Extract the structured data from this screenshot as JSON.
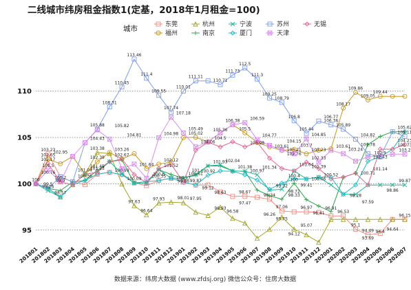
{
  "chart_data": {
    "type": "line",
    "title": "二线城市纬房租金指数1(定基，2018年1月租金=100)",
    "legend_title": "城市",
    "source": "数据来源：纬房大数据 (www.zfdsj.org)     微信公众号：住房大数据",
    "ylim": [
      93.5,
      114.5
    ],
    "yticks": [
      95,
      100,
      105,
      110
    ],
    "grid": "horizontal-dotted",
    "legend_position": "top",
    "x": [
      "201801",
      "201802",
      "201803",
      "201804",
      "201805",
      "201806",
      "201807",
      "201808",
      "201809",
      "201810",
      "201811",
      "201812",
      "201901",
      "201902",
      "201903",
      "201904",
      "201905",
      "201906",
      "201907",
      "201908",
      "201909",
      "201910",
      "201911",
      "201912",
      "202001",
      "202002",
      "202003",
      "202004",
      "202005",
      "202006",
      "202007"
    ],
    "series": [
      {
        "name": "东莞",
        "color": "#f08a80",
        "marker": "square",
        "values": [
          100,
          103.23,
          100.76,
          100.2,
          99.9,
          101.04,
          101.23,
          100.99,
          100.09,
          99.8,
          100.35,
          100.6,
          100.17,
          99.86,
          99.87,
          99.12,
          98.63,
          98.67,
          98.54,
          98.34,
          97.06,
          96.97,
          96.97,
          96.91,
          96.53,
          96.53,
          95.1,
          94.49,
          94.64,
          96.15,
          96.15
        ]
      },
      {
        "name": "福州",
        "color": "#c8961e",
        "marker": "circle",
        "values": [
          100,
          102.65,
          102.17,
          102.95,
          101.04,
          102.39,
          103.38,
          102.67,
          103.26,
          101.64,
          102.12,
          102.34,
          104.98,
          105.02,
          104.54,
          105.49,
          106.38,
          105.5,
          104.47,
          103.98,
          103.61,
          103.7,
          103.23,
          103.61,
          103.78,
          108.17,
          109.86,
          109.05,
          109.44,
          109.44,
          109.44
        ]
      },
      {
        "name": "杭州",
        "color": "#a3a32c",
        "marker": "triangle",
        "values": [
          100,
          99.5,
          98.57,
          99.9,
          101.04,
          103.38,
          103.26,
          99.97,
          97.63,
          96.64,
          97.93,
          98.01,
          97.95,
          96.93,
          96.58,
          97.47,
          96.26,
          95.75,
          94.12,
          95.07,
          96.41,
          95.1,
          94.49,
          93.69,
          96.15,
          96.15,
          96.15,
          96.15,
          96.15,
          96.15,
          96.15
        ]
      },
      {
        "name": "南京",
        "color": "#2aa34a",
        "marker": "plus",
        "values": [
          100,
          99.5,
          99.26,
          100.2,
          100.36,
          101.45,
          102.39,
          102.57,
          100.09,
          100.22,
          101.52,
          101.0,
          100.61,
          100.92,
          101.93,
          101.92,
          101.38,
          101.34,
          99.32,
          98.72,
          98.33,
          100.06,
          98.28,
          97.59,
          97.0,
          100.71,
          101.14,
          104.23,
          105.11,
          105.62,
          105.62
        ]
      },
      {
        "name": "宁波",
        "color": "#1ab89a",
        "marker": "cross",
        "values": [
          100,
          99.26,
          98.57,
          99.9,
          101.04,
          101.23,
          102.39,
          101.09,
          100.09,
          100.03,
          101.52,
          100.6,
          100.61,
          101.0,
          101.93,
          102.04,
          101.38,
          101.34,
          100.97,
          99.32,
          99.41,
          101.39,
          100.52,
          100.71,
          99.87,
          98.86,
          98.86,
          99.87,
          99.87,
          99.87,
          99.87
        ]
      },
      {
        "name": "厦门",
        "color": "#20b8c8",
        "marker": "diamond",
        "values": [
          100,
          99.5,
          98.57,
          99.9,
          100.36,
          101.04,
          101.23,
          100.99,
          100.09,
          100.22,
          100.35,
          100.6,
          100.17,
          99.86,
          100.92,
          101.38,
          101.34,
          100.97,
          100.4,
          99.41,
          100.06,
          100.52,
          100.52,
          100.71,
          100.71,
          98.86,
          99.87,
          102.43,
          102.9,
          103.73,
          105.62
        ]
      },
      {
        "name": "苏州",
        "color": "#7b9cf0",
        "marker": "square",
        "values": [
          100,
          99.5,
          100.76,
          100.2,
          104.43,
          105.88,
          108.31,
          110.45,
          113.46,
          111.4,
          109.55,
          107.74,
          110.01,
          111.11,
          111.11,
          110.71,
          111.73,
          112.5,
          111.3,
          109.25,
          108.79,
          106.8,
          105.44,
          106.77,
          106.36,
          105.89,
          104.82,
          103.24,
          102.9,
          105.62,
          105.11
        ]
      },
      {
        "name": "天津",
        "color": "#d98ef0",
        "marker": "square-x",
        "values": [
          100,
          101.5,
          100.2,
          102.95,
          104.43,
          105.82,
          104.81,
          101.64,
          102.12,
          100.6,
          104.98,
          107.18,
          105.49,
          103.98,
          104.5,
          105.49,
          106.38,
          106.59,
          104.77,
          104.15,
          103.67,
          103.23,
          104.85,
          102.33,
          103.61,
          103.24,
          102.43,
          102.9,
          103.0,
          103.2,
          103.2
        ]
      },
      {
        "name": "无锡",
        "color": "#e8608c",
        "marker": "diamond",
        "values": [
          100,
          102.17,
          100.2,
          99.9,
          101.04,
          101.23,
          102.39,
          102.67,
          100.99,
          100.09,
          101.64,
          102.12,
          100.17,
          103.61,
          104.5,
          103.98,
          104.54,
          103.98,
          104.47,
          102.76,
          101.64,
          101.39,
          102.33,
          101.64,
          100.52,
          100.71,
          101.14,
          99.87,
          103.73,
          103.73,
          104.23
        ]
      }
    ],
    "label_text": [
      {
        "t": "113.46",
        "x": 8,
        "y": 113.46
      },
      {
        "t": "111.4",
        "x": 9,
        "y": 111.4
      },
      {
        "t": "110.45",
        "x": 7,
        "y": 110.45
      },
      {
        "t": "109.55",
        "x": 10,
        "y": 109.55
      },
      {
        "t": "108.31",
        "x": 6,
        "y": 108.31
      },
      {
        "t": "107.74",
        "x": 11,
        "y": 107.74
      },
      {
        "t": "105.88",
        "x": 5,
        "y": 105.88
      },
      {
        "t": "105.82",
        "x": 7,
        "y": 105.82
      },
      {
        "t": "104.81",
        "x": 8,
        "y": 104.81
      },
      {
        "t": "104.43",
        "x": 5,
        "y": 104.43
      },
      {
        "t": "111.11",
        "x": 13,
        "y": 111.11
      },
      {
        "t": "110.01",
        "x": 12,
        "y": 110.01
      },
      {
        "t": "110.71",
        "x": 15,
        "y": 110.71
      },
      {
        "t": "111.73",
        "x": 16,
        "y": 111.73
      },
      {
        "t": "112.5",
        "x": 17,
        "y": 112.5
      },
      {
        "t": "111.3",
        "x": 18,
        "y": 111.3
      },
      {
        "t": "109.25",
        "x": 19,
        "y": 109.25
      },
      {
        "t": "108.79",
        "x": 20,
        "y": 108.79
      },
      {
        "t": "106.8",
        "x": 21,
        "y": 106.8
      },
      {
        "t": "105.44",
        "x": 22,
        "y": 105.44
      },
      {
        "t": "106.77",
        "x": 24,
        "y": 106.77
      },
      {
        "t": "106.36",
        "x": 24,
        "y": 106.36
      },
      {
        "t": "105.89",
        "x": 25,
        "y": 105.89
      },
      {
        "t": "108.17",
        "x": 25,
        "y": 108.17
      },
      {
        "t": "109.86",
        "x": 26,
        "y": 109.86
      },
      {
        "t": "109.05",
        "x": 27,
        "y": 109.05
      },
      {
        "t": "109.44",
        "x": 28,
        "y": 109.44
      },
      {
        "t": "107.18",
        "x": 12,
        "y": 107.18
      },
      {
        "t": "103.23",
        "x": 1,
        "y": 103.23
      },
      {
        "t": "102.65",
        "x": 1,
        "y": 102.65
      },
      {
        "t": "102.17",
        "x": 1,
        "y": 102.17
      },
      {
        "t": "102.95",
        "x": 2,
        "y": 102.95
      },
      {
        "t": "101.5",
        "x": 1,
        "y": 101.5
      },
      {
        "t": "100.76",
        "x": 1,
        "y": 100.76
      },
      {
        "t": "100.2",
        "x": 2,
        "y": 100.2
      },
      {
        "t": "99.5",
        "x": 1,
        "y": 99.5
      },
      {
        "t": "99.26",
        "x": 1,
        "y": 99.26
      },
      {
        "t": "98.57",
        "x": 2,
        "y": 98.57
      },
      {
        "t": "99.9",
        "x": 2,
        "y": 99.9
      },
      {
        "t": "100",
        "x": 0,
        "y": 100
      },
      {
        "t": "101.04",
        "x": 4,
        "y": 101.04
      },
      {
        "t": "100.36",
        "x": 4,
        "y": 100.36
      },
      {
        "t": "103.38",
        "x": 5,
        "y": 103.38
      },
      {
        "t": "102.39",
        "x": 5,
        "y": 102.39
      },
      {
        "t": "101.23",
        "x": 5,
        "y": 101.23
      },
      {
        "t": "101.45",
        "x": 5,
        "y": 101.45
      },
      {
        "t": "102.67",
        "x": 7,
        "y": 102.67
      },
      {
        "t": "103.26",
        "x": 7,
        "y": 103.26
      },
      {
        "t": "100.99",
        "x": 7,
        "y": 100.99
      },
      {
        "t": "100.09",
        "x": 8,
        "y": 100.09
      },
      {
        "t": "101.64",
        "x": 9,
        "y": 101.64
      },
      {
        "t": "97.63",
        "x": 8,
        "y": 97.63
      },
      {
        "t": "96.64",
        "x": 9,
        "y": 96.64
      },
      {
        "t": "97.93",
        "x": 10,
        "y": 97.93
      },
      {
        "t": "102.12",
        "x": 11,
        "y": 102.12
      },
      {
        "t": "101.52",
        "x": 11,
        "y": 101.52
      },
      {
        "t": "100.6",
        "x": 10,
        "y": 100.6
      },
      {
        "t": "100.35",
        "x": 10,
        "y": 100.35
      },
      {
        "t": "104.98",
        "x": 11,
        "y": 104.98
      },
      {
        "t": "100.17",
        "x": 12,
        "y": 100.17
      },
      {
        "t": "99.86",
        "x": 12,
        "y": 99.86
      },
      {
        "t": "98.01",
        "x": 12,
        "y": 98.01
      },
      {
        "t": "97.95",
        "x": 13,
        "y": 97.95
      },
      {
        "t": "101",
        "x": 13,
        "y": 101
      },
      {
        "t": "100.61",
        "x": 13,
        "y": 100.61
      },
      {
        "t": "99.87",
        "x": 13,
        "y": 99.87
      },
      {
        "t": "105.49",
        "x": 13,
        "y": 105.49
      },
      {
        "t": "105.02",
        "x": 13,
        "y": 105.02
      },
      {
        "t": "104.06",
        "x": 14,
        "y": 104.06
      },
      {
        "t": "100.92",
        "x": 14,
        "y": 100.92
      },
      {
        "t": "99.12",
        "x": 14,
        "y": 99.12
      },
      {
        "t": "96.93",
        "x": 15,
        "y": 96.93
      },
      {
        "t": "98.63",
        "x": 15,
        "y": 98.63
      },
      {
        "t": "101.93",
        "x": 15,
        "y": 101.93
      },
      {
        "t": "104.5",
        "x": 15,
        "y": 104.5
      },
      {
        "t": "105.36",
        "x": 15,
        "y": 105.36
      },
      {
        "t": "106.38",
        "x": 16,
        "y": 106.38
      },
      {
        "t": "105.5",
        "x": 17,
        "y": 105.5
      },
      {
        "t": "106.59",
        "x": 18,
        "y": 106.59
      },
      {
        "t": "102.04",
        "x": 16,
        "y": 102.04
      },
      {
        "t": "101.38",
        "x": 17,
        "y": 101.38
      },
      {
        "t": "96.58",
        "x": 16,
        "y": 96.58
      },
      {
        "t": "98.67",
        "x": 17,
        "y": 98.67
      },
      {
        "t": "97.47",
        "x": 17,
        "y": 97.47
      },
      {
        "t": "103.98",
        "x": 18,
        "y": 103.98
      },
      {
        "t": "104.77",
        "x": 19,
        "y": 104.77
      },
      {
        "t": "101.34",
        "x": 19,
        "y": 101.34
      },
      {
        "t": "100.97",
        "x": 18,
        "y": 100.97
      },
      {
        "t": "98.34",
        "x": 19,
        "y": 98.34
      },
      {
        "t": "96.26",
        "x": 19,
        "y": 96.26
      },
      {
        "t": "95.75",
        "x": 20,
        "y": 95.75
      },
      {
        "t": "97.06",
        "x": 20,
        "y": 97.06
      },
      {
        "t": "99.32",
        "x": 20,
        "y": 99.32
      },
      {
        "t": "100.4",
        "x": 21,
        "y": 100.4
      },
      {
        "t": "98.72",
        "x": 21,
        "y": 98.72
      },
      {
        "t": "98.33",
        "x": 21,
        "y": 98.33
      },
      {
        "t": "94.12",
        "x": 21,
        "y": 94.12
      },
      {
        "t": "95.07",
        "x": 22,
        "y": 95.07
      },
      {
        "t": "96.97",
        "x": 22,
        "y": 96.97
      },
      {
        "t": "99.41",
        "x": 22,
        "y": 99.41
      },
      {
        "t": "100",
        "x": 21,
        "y": 100
      },
      {
        "t": "101.64",
        "x": 22,
        "y": 101.64
      },
      {
        "t": "102.76",
        "x": 21,
        "y": 102.76
      },
      {
        "t": "103.21",
        "x": 21,
        "y": 103.21
      },
      {
        "t": "103.61",
        "x": 20,
        "y": 103.61
      },
      {
        "t": "104.15",
        "x": 21,
        "y": 104.15
      },
      {
        "t": "103.7",
        "x": 22,
        "y": 103.7
      },
      {
        "t": "103.23",
        "x": 23,
        "y": 103.23
      },
      {
        "t": "102.33",
        "x": 23,
        "y": 102.33
      },
      {
        "t": "101.39",
        "x": 23,
        "y": 101.39
      },
      {
        "t": "100.06",
        "x": 23,
        "y": 100.06
      },
      {
        "t": "96.41",
        "x": 23,
        "y": 96.41
      },
      {
        "t": "96.91",
        "x": 24,
        "y": 96.91
      },
      {
        "t": "96.53",
        "x": 25,
        "y": 96.53
      },
      {
        "t": "100.52",
        "x": 24,
        "y": 100.52
      },
      {
        "t": "104.85",
        "x": 23,
        "y": 104.85
      },
      {
        "t": "103.61",
        "x": 25,
        "y": 103.61
      },
      {
        "t": "103.24",
        "x": 26,
        "y": 103.24
      },
      {
        "t": "103.78",
        "x": 27,
        "y": 103.78
      },
      {
        "t": "104.82",
        "x": 27,
        "y": 104.82
      },
      {
        "t": "102.9",
        "x": 28,
        "y": 102.9
      },
      {
        "t": "102.43",
        "x": 28,
        "y": 102.43
      },
      {
        "t": "100.71",
        "x": 27,
        "y": 100.71
      },
      {
        "t": "101.14",
        "x": 28,
        "y": 101.14
      },
      {
        "t": "98.28",
        "x": 26,
        "y": 98.28
      },
      {
        "t": "97.59",
        "x": 27,
        "y": 97.59
      },
      {
        "t": "95.1",
        "x": 26,
        "y": 95.1
      },
      {
        "t": "94.49",
        "x": 27,
        "y": 94.49
      },
      {
        "t": "93.69",
        "x": 27,
        "y": 93.69
      },
      {
        "t": "94.4",
        "x": 28,
        "y": 94.4
      },
      {
        "t": "94.64",
        "x": 29,
        "y": 94.64
      },
      {
        "t": "96.15",
        "x": 30,
        "y": 96.15
      },
      {
        "t": "98.86",
        "x": 29,
        "y": 98.86
      },
      {
        "t": "99.87",
        "x": 30,
        "y": 99.87
      },
      {
        "t": "103.2",
        "x": 30,
        "y": 103.2
      },
      {
        "t": "103.73",
        "x": 30,
        "y": 103.73
      },
      {
        "t": "104.23",
        "x": 30,
        "y": 104.23
      },
      {
        "t": "105.11",
        "x": 30,
        "y": 105.11
      },
      {
        "t": "105.62",
        "x": 30,
        "y": 105.62
      }
    ]
  }
}
